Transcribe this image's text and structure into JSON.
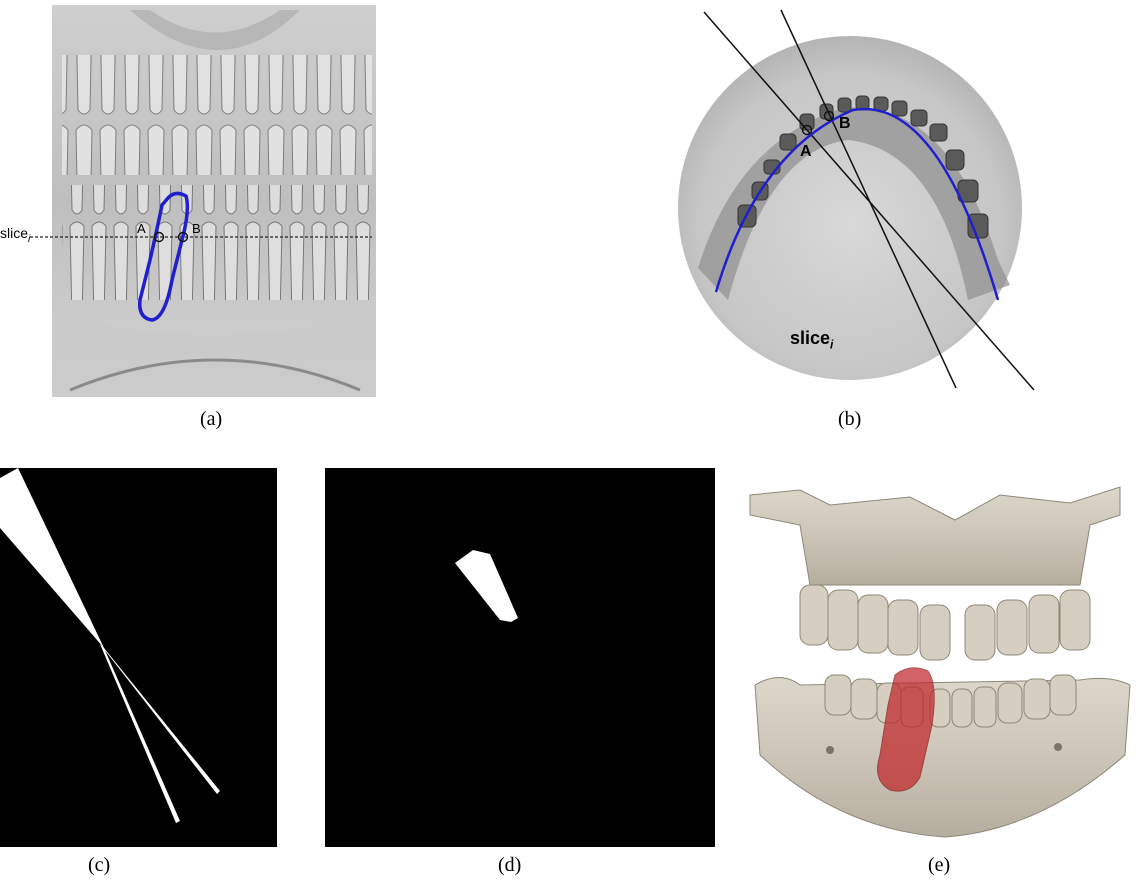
{
  "figure": {
    "panels": [
      {
        "id": "a",
        "caption": "(a)",
        "slice_label": "slice",
        "slice_subscript": "i",
        "point_a": "A",
        "point_b": "B"
      },
      {
        "id": "b",
        "caption": "(b)",
        "slice_label": "slice",
        "slice_subscript": "i",
        "point_a": "A",
        "point_b": "B"
      },
      {
        "id": "c",
        "caption": "(c)"
      },
      {
        "id": "d",
        "caption": "(d)"
      },
      {
        "id": "e",
        "caption": "(e)"
      }
    ],
    "colors": {
      "curve": "#1f1fd0",
      "mask": "#ffffff",
      "background_mask": "#000000",
      "bone": "#cfc8bb",
      "tooth_highlight": "#c0262a"
    }
  }
}
